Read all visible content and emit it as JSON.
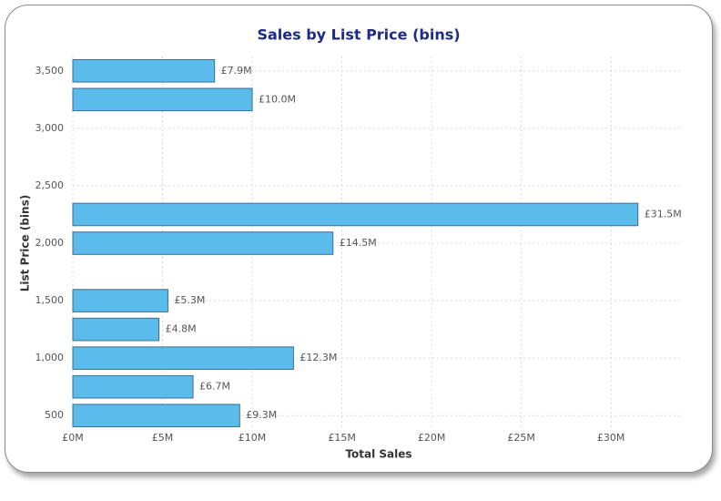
{
  "chart_data": {
    "type": "bar",
    "orientation": "horizontal",
    "title": "Sales by List Price (bins)",
    "x_label": "Total Sales",
    "y_label": "List Price (bins)",
    "y": [
      3500,
      3250,
      2250,
      2000,
      1500,
      1250,
      1000,
      750,
      500
    ],
    "values": [
      7.9,
      10.0,
      31.5,
      14.5,
      5.3,
      4.8,
      12.3,
      6.7,
      9.3
    ],
    "value_labels": [
      "£7.9M",
      "£10.0M",
      "£31.5M",
      "£14.5M",
      "£5.3M",
      "£4.8M",
      "£12.3M",
      "£6.7M",
      "£9.3M"
    ],
    "color": "#5bbcec",
    "edge_color": "#3d6e8f",
    "xlim": [
      0,
      34
    ],
    "xticks": [
      {
        "value": 0,
        "label": "£0M"
      },
      {
        "value": 5,
        "label": "£5M"
      },
      {
        "value": 10,
        "label": "£10M"
      },
      {
        "value": 15,
        "label": "£15M"
      },
      {
        "value": 20,
        "label": "£20M"
      },
      {
        "value": 25,
        "label": "£25M"
      },
      {
        "value": 30,
        "label": "£30M"
      }
    ],
    "ylim": [
      375,
      3625
    ],
    "yticks": [
      {
        "value": 500,
        "label": "500"
      },
      {
        "value": 1000,
        "label": "1,000"
      },
      {
        "value": 1500,
        "label": "1,500"
      },
      {
        "value": 2000,
        "label": "2,000"
      },
      {
        "value": 2500,
        "label": "2,500"
      },
      {
        "value": 3000,
        "label": "3,000"
      },
      {
        "value": 3500,
        "label": "3,500"
      }
    ],
    "grid": true
  }
}
